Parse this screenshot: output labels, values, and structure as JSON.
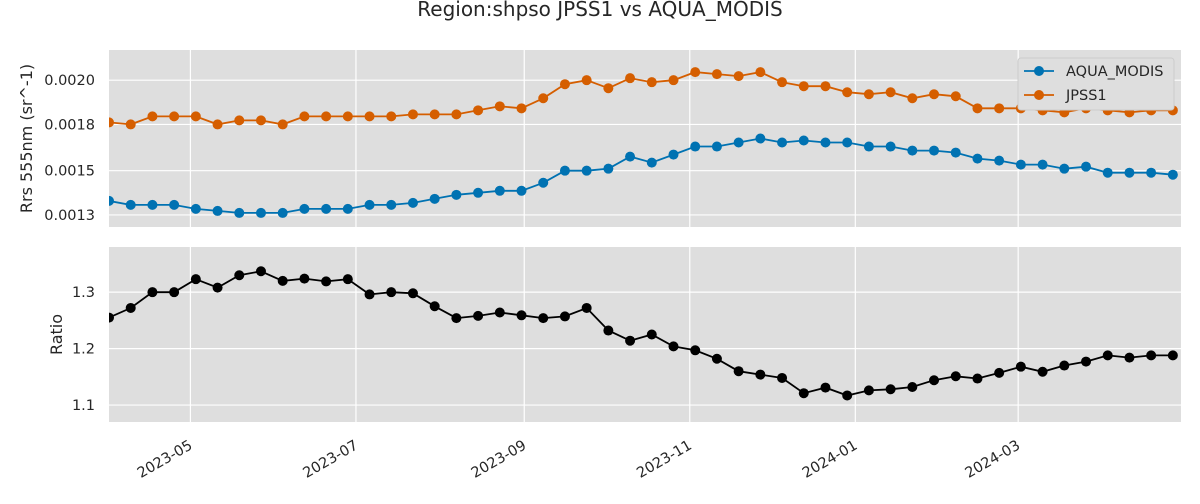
{
  "chart_data": {
    "type": "line",
    "title": "Region:shpso JPSS1 vs AQUA_MODIS",
    "x_ticks": [
      "2023-05",
      "2023-07",
      "2023-09",
      "2023-11",
      "2024-01",
      "2024-03"
    ],
    "x_range": [
      "2023-04-01",
      "2024-04-30"
    ],
    "x": [
      "2023-04-01",
      "2023-04-09",
      "2023-04-17",
      "2023-04-25",
      "2023-05-03",
      "2023-05-11",
      "2023-05-19",
      "2023-05-27",
      "2023-06-04",
      "2023-06-12",
      "2023-06-20",
      "2023-06-28",
      "2023-07-06",
      "2023-07-14",
      "2023-07-22",
      "2023-07-30",
      "2023-08-07",
      "2023-08-15",
      "2023-08-23",
      "2023-08-31",
      "2023-09-08",
      "2023-09-16",
      "2023-09-24",
      "2023-10-02",
      "2023-10-10",
      "2023-10-18",
      "2023-10-26",
      "2023-11-03",
      "2023-11-11",
      "2023-11-19",
      "2023-11-27",
      "2023-12-05",
      "2023-12-13",
      "2023-12-21",
      "2023-12-29",
      "2024-01-06",
      "2024-01-14",
      "2024-01-22",
      "2024-01-30",
      "2024-02-07",
      "2024-02-15",
      "2024-02-23",
      "2024-03-02",
      "2024-03-10",
      "2024-03-18",
      "2024-03-26",
      "2024-04-03",
      "2024-04-11",
      "2024-04-19",
      "2024-04-27"
    ],
    "panels": [
      {
        "ylabel": "Rrs 555nm (sr^-1)",
        "yticks": [
          "0.0013",
          "0.0015",
          "0.0018",
          "0.0020"
        ],
        "ytick_values": [
          0.00133,
          0.00155,
          0.00178,
          0.002
        ],
        "ylim": [
          0.00127,
          0.00215
        ],
        "legend": "top-right",
        "series": [
          {
            "name": "AQUA_MODIS",
            "color": "#0072B2",
            "values": [
              0.0014,
              0.00138,
              0.00138,
              0.00138,
              0.00136,
              0.00135,
              0.00134,
              0.00134,
              0.00134,
              0.00136,
              0.00136,
              0.00136,
              0.00138,
              0.00138,
              0.00139,
              0.00141,
              0.00143,
              0.00144,
              0.00145,
              0.00145,
              0.00149,
              0.00155,
              0.00155,
              0.00156,
              0.00162,
              0.00159,
              0.00163,
              0.00167,
              0.00167,
              0.00169,
              0.00171,
              0.00169,
              0.0017,
              0.00169,
              0.00169,
              0.00167,
              0.00167,
              0.00165,
              0.00165,
              0.00164,
              0.00161,
              0.0016,
              0.00158,
              0.00158,
              0.00156,
              0.00157,
              0.00154,
              0.00154,
              0.00154,
              0.00153
            ]
          },
          {
            "name": "JPSS1",
            "color": "#D55E00",
            "values": [
              0.00179,
              0.00178,
              0.00182,
              0.00182,
              0.00182,
              0.00178,
              0.0018,
              0.0018,
              0.00178,
              0.00182,
              0.00182,
              0.00182,
              0.00182,
              0.00182,
              0.00183,
              0.00183,
              0.00183,
              0.00185,
              0.00187,
              0.00186,
              0.00191,
              0.00198,
              0.002,
              0.00196,
              0.00201,
              0.00199,
              0.002,
              0.00204,
              0.00203,
              0.00202,
              0.00204,
              0.00199,
              0.00197,
              0.00197,
              0.00194,
              0.00193,
              0.00194,
              0.00191,
              0.00193,
              0.00192,
              0.00186,
              0.00186,
              0.00186,
              0.00185,
              0.00184,
              0.00186,
              0.00185,
              0.00184,
              0.00185,
              0.00185
            ]
          }
        ]
      },
      {
        "ylabel": "Ratio",
        "yticks": [
          "1.1",
          "1.2",
          "1.3"
        ],
        "ytick_values": [
          1.1,
          1.2,
          1.3
        ],
        "ylim": [
          1.07,
          1.38
        ],
        "series": [
          {
            "name": "",
            "color": "#000000",
            "values": [
              1.255,
              1.272,
              1.3,
              1.3,
              1.323,
              1.308,
              1.33,
              1.337,
              1.32,
              1.324,
              1.319,
              1.323,
              1.296,
              1.3,
              1.298,
              1.275,
              1.254,
              1.258,
              1.264,
              1.259,
              1.254,
              1.257,
              1.272,
              1.232,
              1.214,
              1.225,
              1.204,
              1.197,
              1.182,
              1.16,
              1.154,
              1.148,
              1.121,
              1.131,
              1.117,
              1.126,
              1.128,
              1.132,
              1.144,
              1.151,
              1.147,
              1.157,
              1.168,
              1.159,
              1.17,
              1.177,
              1.188,
              1.184,
              1.188,
              1.188
            ]
          }
        ]
      }
    ]
  }
}
